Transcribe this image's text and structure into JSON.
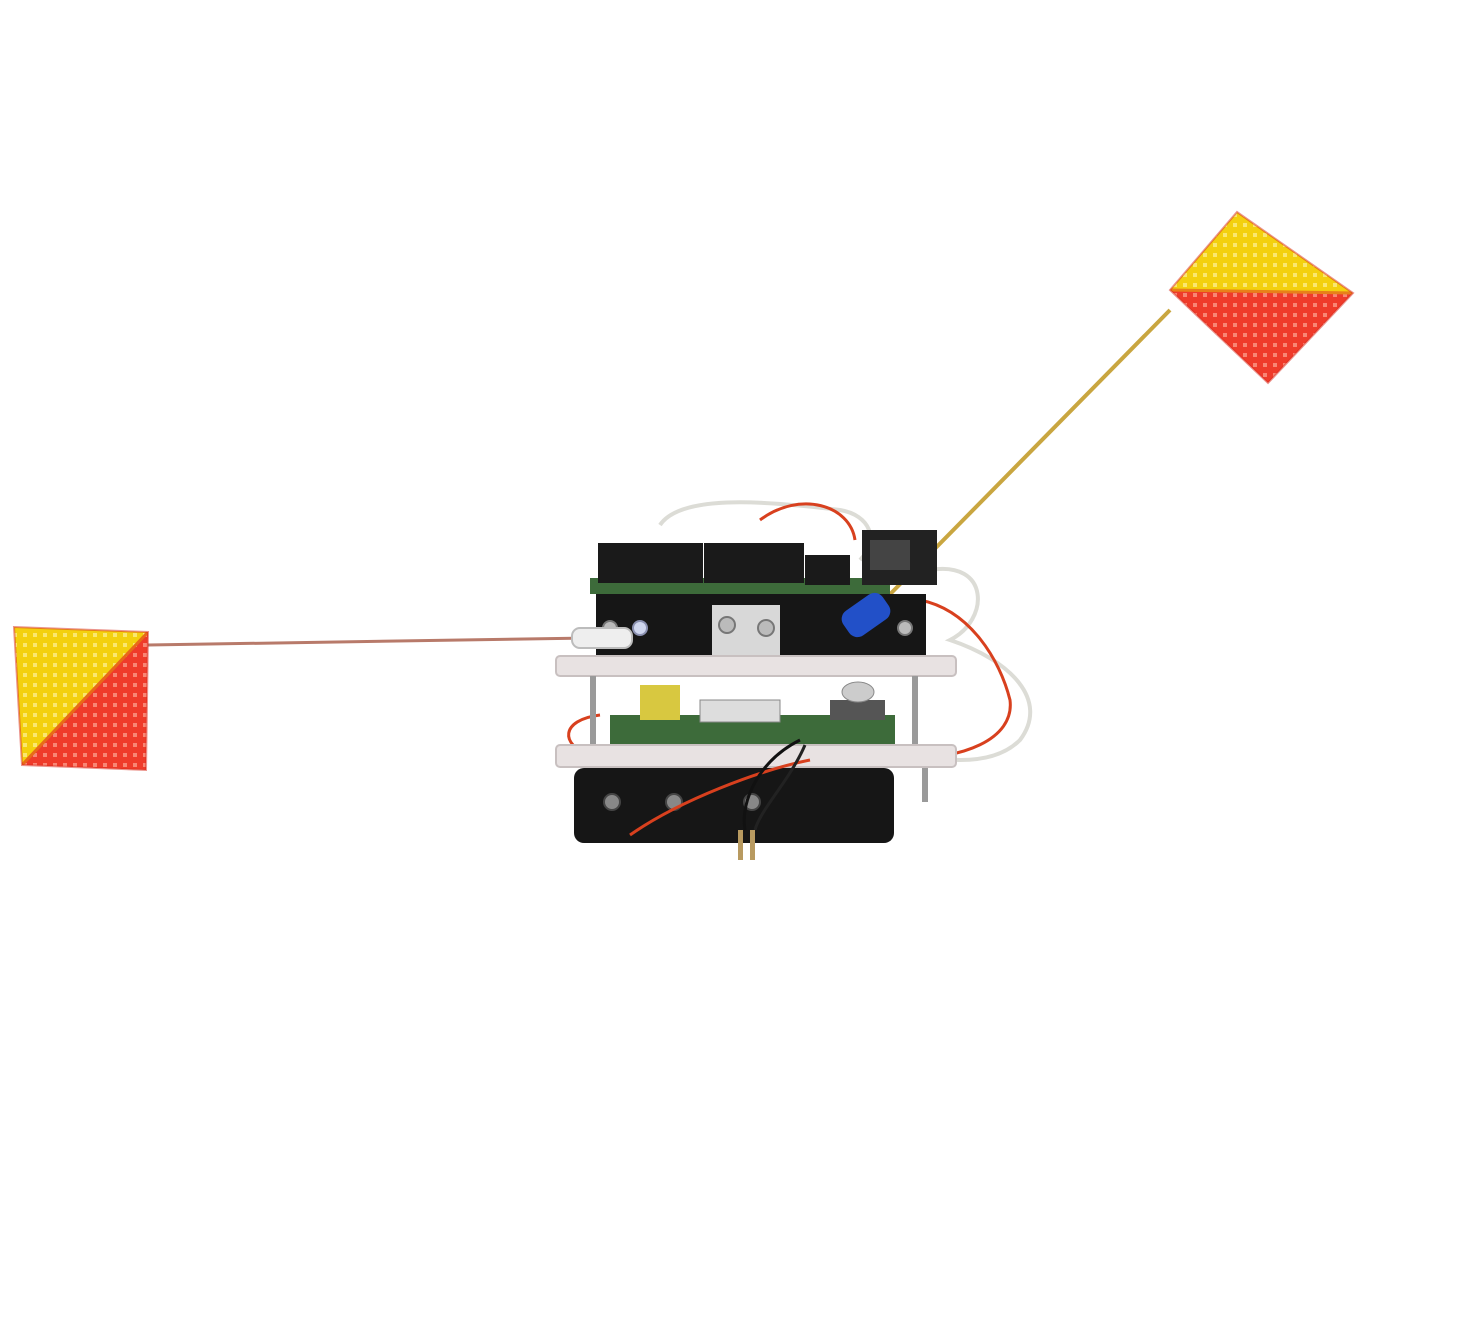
{
  "scene": {
    "background_color": "#ffffff",
    "subject": "semaphore-robot",
    "flag_colors": {
      "yellow": "#f3d00e",
      "red": "#ef3b2a",
      "red_dark": "#d82a1c"
    },
    "component_colors": {
      "acrylic_plate": "#e8e2e2",
      "pcb_green": "#3d6b3a",
      "header_black": "#1a1a1a",
      "battery_black": "#161616",
      "brass_rod": "#c9a640",
      "copper_rod": "#b87a6a",
      "wire_red": "#d8401e",
      "wire_white": "#dcdcd6",
      "servo_horn_blue": "#2250c8",
      "standoff_silver": "#9a9a9a"
    },
    "left_arm": {
      "angle_deg": 0,
      "flag": "yellow-red-diagonal"
    },
    "right_arm": {
      "angle_deg": 27,
      "flag": "yellow-red-diagonal"
    }
  }
}
